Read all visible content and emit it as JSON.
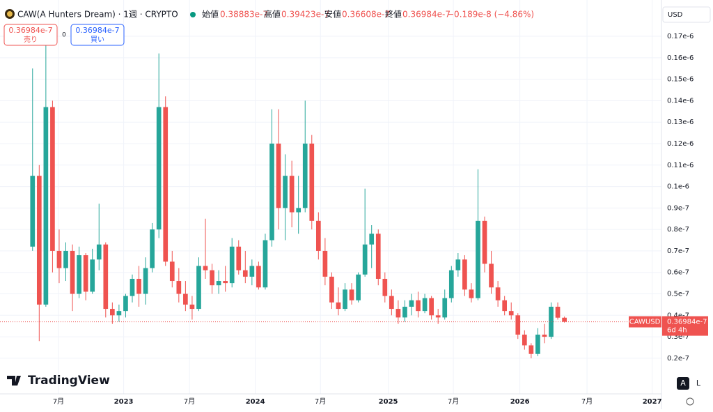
{
  "header": {
    "symbol": "CAW(A Hunters Dream) · 1週 · CRYPTO",
    "open_label": "始値",
    "open": "0.38883e-7",
    "high_label": "高値",
    "high": "0.39423e-7",
    "low_label": "安値",
    "low": "0.36608e-7",
    "close_label": "終値",
    "close": "0.36984e-7",
    "change": "−0.189e-8 (−4.86%)"
  },
  "trade": {
    "sell_price": "0.36984e-7",
    "sell_label": "売り",
    "spread": "0",
    "buy_price": "0.36984e-7",
    "buy_label": "買い"
  },
  "currency": "USD",
  "logo": "TradingView",
  "buttons": [
    "A",
    "L"
  ],
  "price_tag": {
    "symbol": "CAWUSD",
    "price": "0.36984e-7",
    "countdown": "6d 4h",
    "value": 3.6984e-08
  },
  "chart_data": {
    "type": "candlestick",
    "up_color": "#26a69a",
    "down_color": "#ef5350",
    "grid": true,
    "ylim": [
      3.4e-09,
      1.869e-07
    ],
    "yticks": [
      {
        "value": 2e-08,
        "label": "0.2e-7"
      },
      {
        "value": 3e-08,
        "label": "0.3e-7"
      },
      {
        "value": 4e-08,
        "label": "0.4e-7"
      },
      {
        "value": 5e-08,
        "label": "0.5e-7"
      },
      {
        "value": 6e-08,
        "label": "0.6e-7"
      },
      {
        "value": 7e-08,
        "label": "0.7e-7"
      },
      {
        "value": 8e-08,
        "label": "0.8e-7"
      },
      {
        "value": 9e-08,
        "label": "0.9e-7"
      },
      {
        "value": 1e-07,
        "label": "0.1e-6"
      },
      {
        "value": 1.1e-07,
        "label": "0.11e-6"
      },
      {
        "value": 1.2e-07,
        "label": "0.12e-6"
      },
      {
        "value": 1.3e-07,
        "label": "0.13e-6"
      },
      {
        "value": 1.4e-07,
        "label": "0.14e-6"
      },
      {
        "value": 1.5e-07,
        "label": "0.15e-6"
      },
      {
        "value": 1.6e-07,
        "label": "0.16e-6"
      },
      {
        "value": 1.7e-07,
        "label": "0.17e-6"
      }
    ],
    "xlim": [
      -0.5,
      94.6
    ],
    "xticks": [
      {
        "value": 3.9,
        "label": "7月"
      },
      {
        "value": 13.7,
        "label": "2023"
      },
      {
        "value": 23.6,
        "label": "7月"
      },
      {
        "value": 33.5,
        "label": "2024"
      },
      {
        "value": 43.3,
        "label": "7月"
      },
      {
        "value": 53.5,
        "label": "2025"
      },
      {
        "value": 63.3,
        "label": "7月"
      },
      {
        "value": 73.3,
        "label": "2026"
      },
      {
        "value": 83.4,
        "label": "7月"
      },
      {
        "value": 93.2,
        "label": "2027"
      }
    ],
    "open": [
      7.2e-08,
      1.05e-07,
      4.5e-08,
      1.37e-07,
      7e-08,
      6.2e-08,
      7e-08,
      5e-08,
      6.8e-08,
      5.1e-08,
      6.6e-08,
      7.3e-08,
      4.3e-08,
      4e-08,
      4.2e-08,
      4.9e-08,
      5.7e-08,
      5e-08,
      6.2e-08,
      8e-08,
      1.37e-07,
      6.5e-08,
      5.6e-08,
      5e-08,
      4.5e-08,
      4.3e-08,
      6.3e-08,
      6.1e-08,
      5.4e-08,
      5.6e-08,
      5.5e-08,
      7.2e-08,
      6.1e-08,
      5.8e-08,
      6.3e-08,
      5.3e-08,
      7.5e-08,
      1.2e-07,
      9e-08,
      1.05e-07,
      8.8e-08,
      9e-08,
      1.2e-07,
      8.4e-08,
      7e-08,
      5.8e-08,
      4.6e-08,
      4.3e-08,
      5.2e-08,
      4.7e-08,
      5.9e-08,
      7.3e-08,
      7.8e-08,
      5.7e-08,
      4.9e-08,
      4.3e-08,
      3.9e-08,
      4.4e-08,
      4.7e-08,
      4.2e-08,
      4.8e-08,
      4e-08,
      3.9e-08,
      4.8e-08,
      6.1e-08,
      6.6e-08,
      5.2e-08,
      4.8e-08,
      8.4e-08,
      6.4e-08,
      5.3e-08,
      4.7e-08,
      4.2e-08,
      4e-08,
      3.1e-08,
      2.6e-08,
      2.2e-08,
      3.1e-08,
      3e-08,
      4.4e-08,
      3.8883e-08
    ],
    "high": [
      1.55e-07,
      1.1e-07,
      1.67e-07,
      1.4e-07,
      8e-08,
      7.4e-08,
      7.3e-08,
      7.2e-08,
      6.9e-08,
      7.1e-08,
      9.2e-08,
      7.4e-08,
      4.6e-08,
      4.5e-08,
      5e-08,
      5.9e-08,
      6.3e-08,
      6.7e-08,
      8.3e-08,
      1.62e-07,
      1.42e-07,
      7e-08,
      6.2e-08,
      5.6e-08,
      4.9e-08,
      6.7e-08,
      8.5e-08,
      6.4e-08,
      6.1e-08,
      6.3e-08,
      7.6e-08,
      7.5e-08,
      7e-08,
      6.6e-08,
      6.5e-08,
      7.8e-08,
      1.36e-07,
      1.36e-07,
      1.15e-07,
      1.12e-07,
      1.05e-07,
      1.4e-07,
      1.24e-07,
      8.8e-08,
      7.6e-08,
      6e-08,
      5.3e-08,
      5.5e-08,
      5.5e-08,
      6e-08,
      9.9e-08,
      8.2e-08,
      8e-08,
      6e-08,
      5.2e-08,
      4.7e-08,
      4.7e-08,
      5e-08,
      5.1e-08,
      5e-08,
      4.9e-08,
      4.3e-08,
      5.2e-08,
      6.3e-08,
      6.9e-08,
      6.8e-08,
      5.5e-08,
      1.08e-07,
      8.6e-08,
      7e-08,
      5.6e-08,
      4.9e-08,
      4.6e-08,
      4.1e-08,
      3.3e-08,
      2.7e-08,
      3.4e-08,
      3.6e-08,
      4.6e-08,
      4.6e-08,
      3.9423e-08
    ],
    "low": [
      7e-08,
      2.8e-08,
      4.4e-08,
      6e-08,
      5.5e-08,
      5.6e-08,
      4.2e-08,
      4.8e-08,
      4.7e-08,
      5e-08,
      6.1e-08,
      3.9e-08,
      3.6e-08,
      3.7e-08,
      3.9e-08,
      4.6e-08,
      4.4e-08,
      4.5e-08,
      6e-08,
      7.6e-08,
      6.3e-08,
      5.3e-08,
      4.6e-08,
      4.2e-08,
      3.8e-08,
      4.2e-08,
      5.7e-08,
      5e-08,
      5e-08,
      5.1e-08,
      5.3e-08,
      5.9e-08,
      5.5e-08,
      5.4e-08,
      5.2e-08,
      5.2e-08,
      7.2e-08,
      8e-08,
      7.5e-08,
      8.1e-08,
      7.8e-08,
      8.8e-08,
      8e-08,
      6.6e-08,
      5.4e-08,
      4.3e-08,
      4e-08,
      4.2e-08,
      4.5e-08,
      4.6e-08,
      5.8e-08,
      6.2e-08,
      5.4e-08,
      4.6e-08,
      4e-08,
      3.6e-08,
      3.7e-08,
      4e-08,
      3.9e-08,
      4.1e-08,
      3.8e-08,
      3.6e-08,
      3.8e-08,
      4.6e-08,
      5.8e-08,
      4.9e-08,
      4.6e-08,
      4.7e-08,
      6e-08,
      5e-08,
      4.4e-08,
      4e-08,
      3.8e-08,
      2.9e-08,
      2.4e-08,
      2e-08,
      2.1e-08,
      2.7e-08,
      2.9e-08,
      3.8e-08,
      3.6608e-08
    ],
    "close": [
      1.05e-07,
      4.5e-08,
      1.37e-07,
      7e-08,
      6.2e-08,
      7e-08,
      5e-08,
      6.8e-08,
      5.1e-08,
      6.6e-08,
      7.3e-08,
      4.3e-08,
      4e-08,
      4.2e-08,
      4.9e-08,
      5.7e-08,
      5e-08,
      6.2e-08,
      8e-08,
      1.37e-07,
      6.5e-08,
      5.6e-08,
      5e-08,
      4.5e-08,
      4.3e-08,
      6.3e-08,
      6.1e-08,
      5.4e-08,
      5.6e-08,
      5.5e-08,
      7.2e-08,
      6.1e-08,
      5.8e-08,
      6.3e-08,
      5.3e-08,
      7.5e-08,
      1.2e-07,
      9e-08,
      1.05e-07,
      8.8e-08,
      9e-08,
      1.2e-07,
      8.4e-08,
      7e-08,
      5.8e-08,
      4.6e-08,
      4.3e-08,
      5.2e-08,
      4.7e-08,
      5.9e-08,
      7.3e-08,
      7.8e-08,
      5.7e-08,
      4.9e-08,
      4.3e-08,
      3.9e-08,
      4.4e-08,
      4.7e-08,
      4.2e-08,
      4.8e-08,
      4e-08,
      3.9e-08,
      4.8e-08,
      6.1e-08,
      6.6e-08,
      5.2e-08,
      4.8e-08,
      8.4e-08,
      6.4e-08,
      5.3e-08,
      4.7e-08,
      4.2e-08,
      4e-08,
      3.1e-08,
      2.6e-08,
      2.2e-08,
      3.1e-08,
      3e-08,
      4.4e-08,
      3.89e-08,
      3.6984e-08
    ]
  }
}
